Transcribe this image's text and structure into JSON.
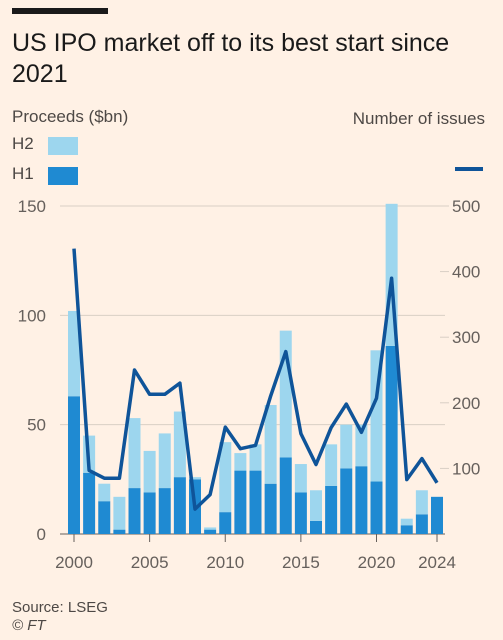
{
  "header": {
    "title": "US IPO market off to its best start since 2021"
  },
  "labels": {
    "left_axis": "Proceeds ($bn)",
    "right_axis": "Number of issues"
  },
  "legend": {
    "h2": "H2",
    "h1": "H1"
  },
  "footer": {
    "source": "Source: LSEG",
    "credit": "© FT"
  },
  "colors": {
    "background": "#fff1e5",
    "h1_bar": "#1f8ad2",
    "h2_bar": "#9dd6ee",
    "line": "#0f5499",
    "grid": "#d9cfc5"
  },
  "chart_data": {
    "type": "bar",
    "title": "US IPO market off to its best start since 2021",
    "ylabel": "Proceeds ($bn)",
    "y2label": "Number of issues",
    "ylim": [
      0,
      150
    ],
    "y2lim": [
      0,
      500
    ],
    "yticks": [
      0,
      50,
      100,
      150
    ],
    "y2ticks": [
      100,
      200,
      300,
      400,
      500
    ],
    "xticks": [
      2000,
      2005,
      2010,
      2015,
      2020,
      2024
    ],
    "x": [
      2000,
      2001,
      2002,
      2003,
      2004,
      2005,
      2006,
      2007,
      2008,
      2009,
      2010,
      2011,
      2012,
      2013,
      2014,
      2015,
      2016,
      2017,
      2018,
      2019,
      2020,
      2021,
      2022,
      2023,
      2024
    ],
    "grid": true,
    "legend_position": "top-left",
    "series": [
      {
        "name": "H1",
        "kind": "bar",
        "axis": "left",
        "values": [
          63,
          28,
          15,
          2,
          21,
          19,
          21,
          26,
          25,
          2,
          10,
          29,
          29,
          23,
          35,
          19,
          6,
          22,
          30,
          31,
          24,
          86,
          4,
          9,
          17
        ]
      },
      {
        "name": "H2",
        "kind": "bar-stacked",
        "axis": "left",
        "values": [
          39,
          17,
          8,
          15,
          32,
          19,
          25,
          30,
          1,
          1,
          32,
          8,
          12,
          36,
          58,
          13,
          14,
          19,
          20,
          19,
          60,
          65,
          3,
          11,
          0
        ]
      },
      {
        "name": "Number of issues",
        "kind": "line",
        "axis": "right",
        "values": [
          435,
          97,
          85,
          85,
          250,
          213,
          213,
          230,
          38,
          60,
          163,
          130,
          135,
          210,
          278,
          153,
          106,
          162,
          198,
          155,
          207,
          390,
          83,
          115,
          78
        ]
      }
    ]
  }
}
